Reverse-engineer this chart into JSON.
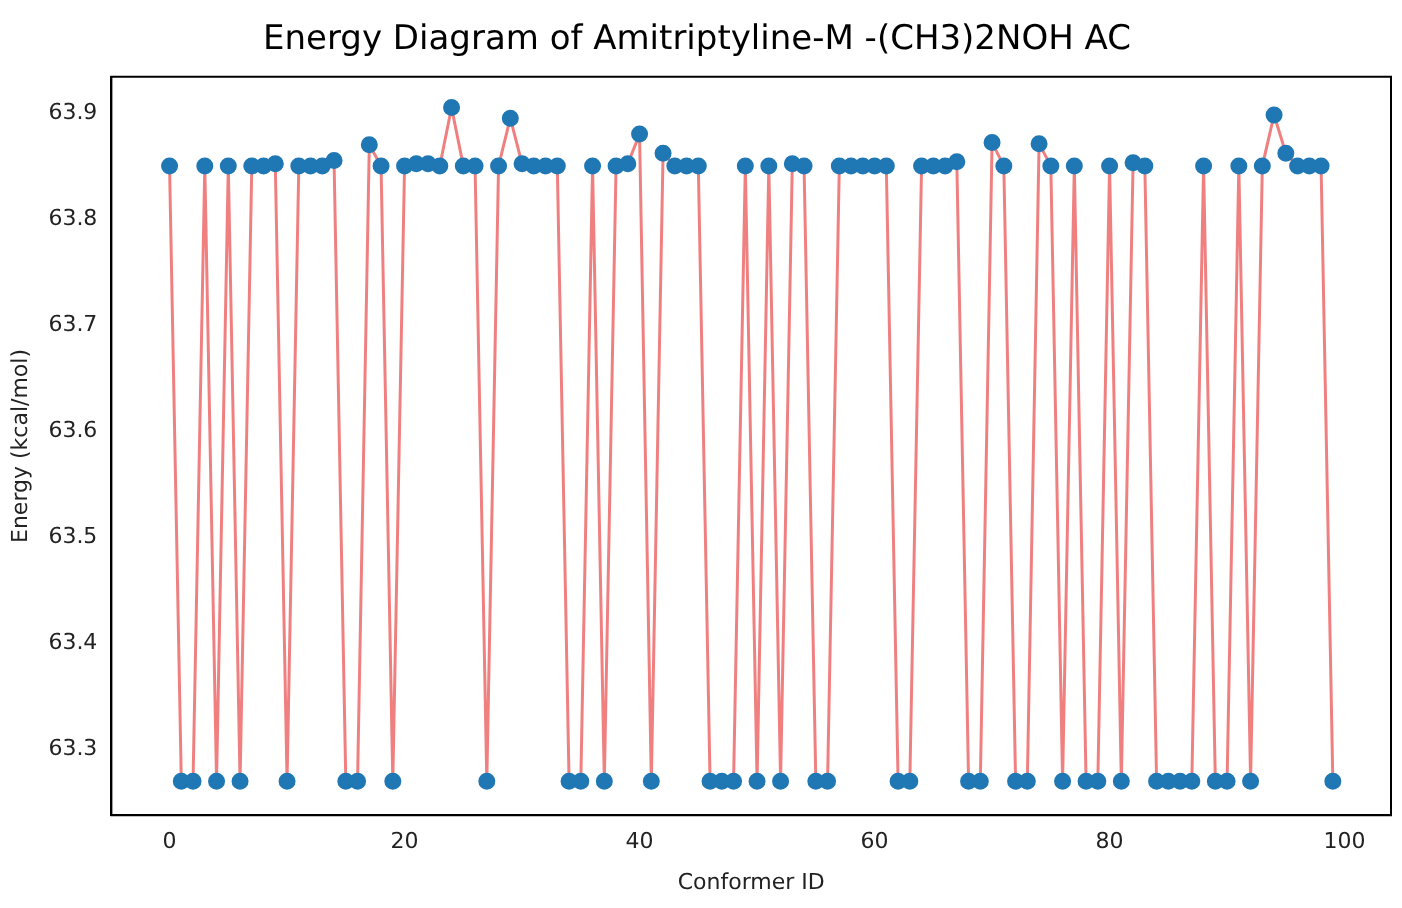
{
  "chart_data": {
    "type": "line",
    "title": "Energy Diagram of Amitriptyline-M -(CH3)2NOH AC",
    "xlabel": "Conformer ID",
    "ylabel": "Energy (kcal/mol)",
    "x": [
      0,
      1,
      2,
      3,
      4,
      5,
      6,
      7,
      8,
      9,
      10,
      11,
      12,
      13,
      14,
      15,
      16,
      17,
      18,
      19,
      20,
      21,
      22,
      23,
      24,
      25,
      26,
      27,
      28,
      29,
      30,
      31,
      32,
      33,
      34,
      35,
      36,
      37,
      38,
      39,
      40,
      41,
      42,
      43,
      44,
      45,
      46,
      47,
      48,
      49,
      50,
      51,
      52,
      53,
      54,
      55,
      56,
      57,
      58,
      59,
      60,
      61,
      62,
      63,
      64,
      65,
      66,
      67,
      68,
      69,
      70,
      71,
      72,
      73,
      74,
      75,
      76,
      77,
      78,
      79,
      80,
      81,
      82,
      83,
      84,
      85,
      86,
      87,
      88,
      89,
      90,
      91,
      92,
      93,
      94,
      95,
      96,
      97,
      98,
      99
    ],
    "series": [
      {
        "color": "#f08080",
        "values": [
          63.85,
          63.27,
          63.27,
          63.85,
          63.27,
          63.85,
          63.27,
          63.85,
          63.85,
          63.852,
          63.27,
          63.85,
          63.85,
          63.85,
          63.855,
          63.27,
          63.27,
          63.87,
          63.85,
          63.27,
          63.85,
          63.852,
          63.852,
          63.85,
          63.905,
          63.85,
          63.85,
          63.27,
          63.85,
          63.895,
          63.852,
          63.85,
          63.85,
          63.85,
          63.27,
          63.27,
          63.85,
          63.27,
          63.85,
          63.852,
          63.88,
          63.27,
          63.862,
          63.85,
          63.85,
          63.85,
          63.27,
          63.27,
          63.27,
          63.85,
          63.27,
          63.85,
          63.27,
          63.852,
          63.85,
          63.27,
          63.27,
          63.85,
          63.85,
          63.85,
          63.85,
          63.85,
          63.27,
          63.27,
          63.85,
          63.85,
          63.85,
          63.854,
          63.27,
          63.27,
          63.872,
          63.85,
          63.27,
          63.27,
          63.871,
          63.85,
          63.27,
          63.85,
          63.27,
          63.27,
          63.85,
          63.27,
          63.853,
          63.85,
          63.27,
          63.27,
          63.27,
          63.27,
          63.85,
          63.27,
          63.27,
          63.85,
          63.27,
          63.85,
          63.898,
          63.862,
          63.85,
          63.85,
          63.85,
          63.27
        ]
      }
    ],
    "xlim": [
      -4.95,
      103.95
    ],
    "ylim": [
      63.238,
      63.934
    ],
    "xticks": [
      0,
      20,
      40,
      60,
      80,
      100
    ],
    "yticks": [
      {
        "value": 63.3,
        "label": "63.3"
      },
      {
        "value": 63.4,
        "label": "63.4"
      },
      {
        "value": 63.5,
        "label": "63.5"
      },
      {
        "value": 63.6,
        "label": "63.6"
      },
      {
        "value": 63.7,
        "label": "63.7"
      },
      {
        "value": 63.8,
        "label": "63.8"
      },
      {
        "value": 63.9,
        "label": "63.9"
      }
    ],
    "marker": "circle",
    "line_style": "solid",
    "grid": false,
    "legend": false
  }
}
